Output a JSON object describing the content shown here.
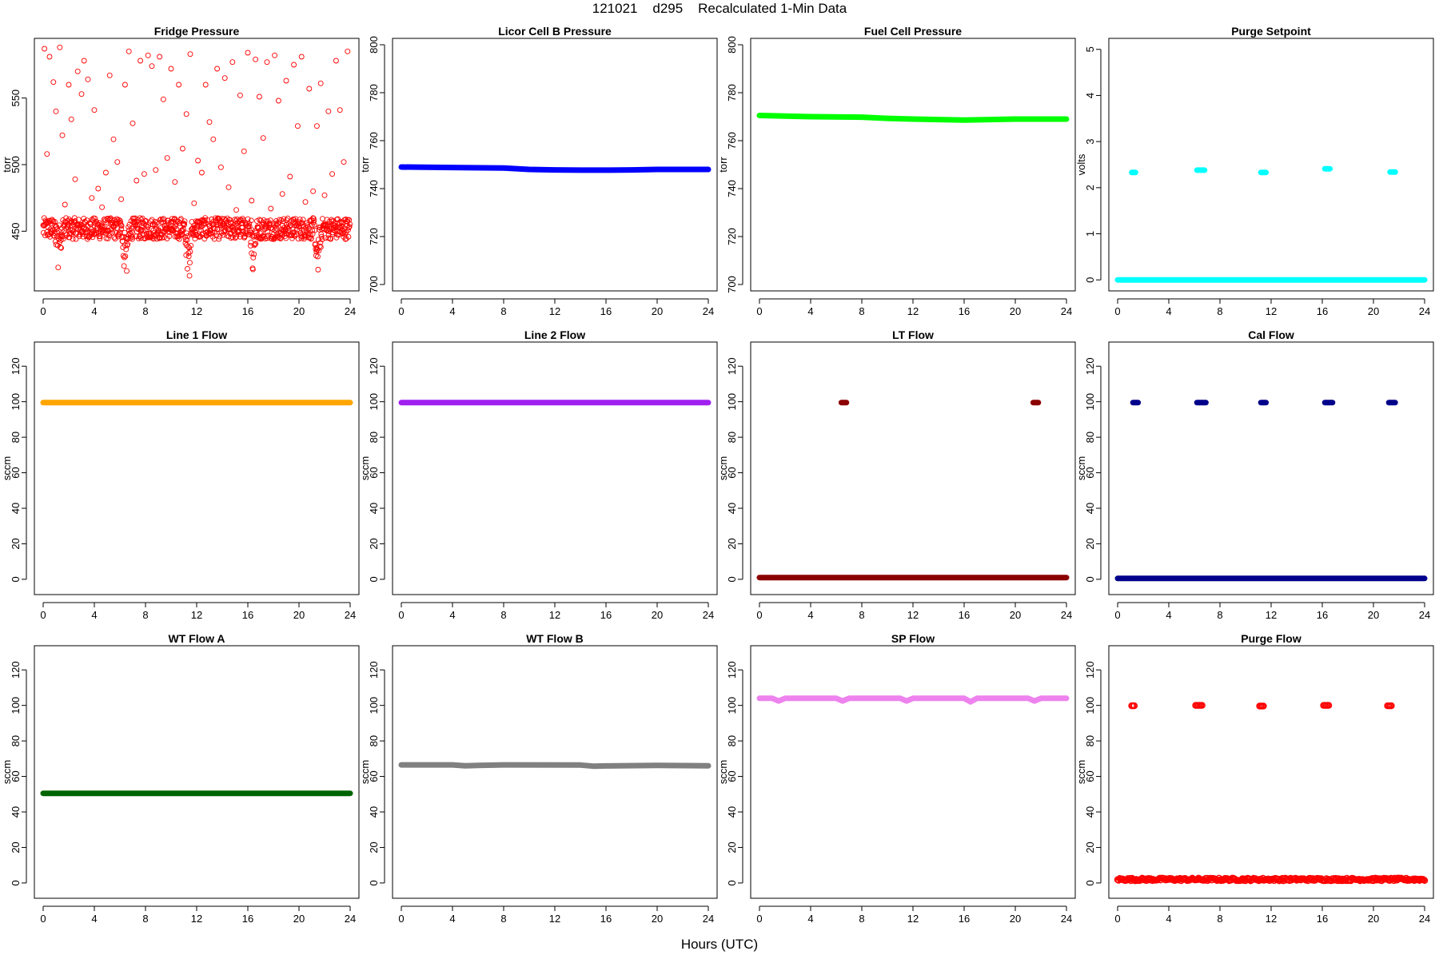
{
  "page": {
    "title": "121021    d295    Recalculated 1-Min Data",
    "xlabel": "Hours (UTC)"
  },
  "chart_data": [
    {
      "type": "scatter",
      "title": "Fridge Pressure",
      "ylabel": "torr",
      "xlim": [
        0,
        24
      ],
      "ylim": [
        410,
        590
      ],
      "xticks": [
        0,
        4,
        8,
        12,
        16,
        20,
        24
      ],
      "yticks": [
        450,
        500,
        550
      ],
      "color": "#ff0000",
      "marker": "open-circle",
      "series": [
        {
          "band": {
            "center": 452,
            "spread": 8
          },
          "dips": [
            [
              1.2,
              420
            ],
            [
              6.4,
              412
            ],
            [
              11.4,
              415
            ],
            [
              16.4,
              420
            ],
            [
              21.5,
              418
            ]
          ],
          "outliers_range": [
            460,
            590
          ],
          "x": [
            0.1,
            0.3,
            0.5,
            0.8,
            1.0,
            1.3,
            1.5,
            1.7,
            2.0,
            2.2,
            2.5,
            2.7,
            3.0,
            3.2,
            3.5,
            3.8,
            4.0,
            4.3,
            4.6,
            4.9,
            5.2,
            5.5,
            5.8,
            6.1,
            6.4,
            6.7,
            7.0,
            7.3,
            7.6,
            7.9,
            8.2,
            8.5,
            8.8,
            9.1,
            9.4,
            9.7,
            10.0,
            10.3,
            10.6,
            10.9,
            11.2,
            11.5,
            11.8,
            12.1,
            12.4,
            12.7,
            13.0,
            13.3,
            13.6,
            13.9,
            14.2,
            14.5,
            14.8,
            15.1,
            15.4,
            15.7,
            16.0,
            16.3,
            16.6,
            16.9,
            17.2,
            17.5,
            17.8,
            18.1,
            18.4,
            18.7,
            19.0,
            19.3,
            19.6,
            19.9,
            20.2,
            20.5,
            20.8,
            21.1,
            21.4,
            21.7,
            22.0,
            22.3,
            22.6,
            22.9,
            23.2,
            23.5,
            23.8
          ],
          "y": [
            587,
            508,
            581,
            562,
            540,
            588,
            522,
            470,
            560,
            534,
            489,
            570,
            553,
            578,
            564,
            475,
            541,
            482,
            468,
            494,
            567,
            519,
            502,
            474,
            560,
            585,
            531,
            488,
            578,
            493,
            582,
            574,
            496,
            581,
            549,
            505,
            572,
            487,
            560,
            512,
            538,
            583,
            471,
            503,
            494,
            560,
            532,
            519,
            572,
            498,
            565,
            483,
            577,
            466,
            552,
            510,
            584,
            473,
            579,
            551,
            520,
            577,
            467,
            582,
            548,
            478,
            563,
            491,
            575,
            529,
            581,
            472,
            557,
            480,
            529,
            561,
            477,
            540,
            493,
            578,
            541,
            502,
            585
          ]
        }
      ]
    },
    {
      "type": "scatter",
      "title": "Licor Cell B Pressure",
      "ylabel": "torr",
      "xlim": [
        0,
        24
      ],
      "ylim": [
        700,
        800
      ],
      "xticks": [
        0,
        4,
        8,
        12,
        16,
        20,
        24
      ],
      "yticks": [
        700,
        720,
        740,
        760,
        780,
        800
      ],
      "color": "#0000ff",
      "marker": "filled",
      "series": [
        {
          "x": [
            0,
            4,
            8,
            10,
            12,
            14,
            16,
            18,
            20,
            24
          ],
          "y": [
            749,
            748.8,
            748.6,
            748,
            747.8,
            747.7,
            747.7,
            747.8,
            748,
            748
          ]
        }
      ]
    },
    {
      "type": "scatter",
      "title": "Fuel Cell Pressure",
      "ylabel": "torr",
      "xlim": [
        0,
        24
      ],
      "ylim": [
        700,
        800
      ],
      "xticks": [
        0,
        4,
        8,
        12,
        16,
        20,
        24
      ],
      "yticks": [
        700,
        720,
        740,
        760,
        780,
        800
      ],
      "color": "#00ff00",
      "marker": "filled",
      "series": [
        {
          "x": [
            0,
            4,
            8,
            10,
            12,
            14,
            16,
            18,
            20,
            24
          ],
          "y": [
            770.5,
            770,
            769.8,
            769.3,
            769,
            768.8,
            768.6,
            768.8,
            769,
            769
          ]
        }
      ]
    },
    {
      "type": "scatter",
      "title": "Purge Setpoint",
      "ylabel": "volts",
      "xlim": [
        0,
        24
      ],
      "ylim": [
        -0.1,
        5.1
      ],
      "xticks": [
        0,
        4,
        8,
        12,
        16,
        20,
        24
      ],
      "yticks": [
        0,
        1,
        2,
        3,
        4,
        5
      ],
      "color": "#00ffff",
      "marker": "filled",
      "series": [
        {
          "x": [
            0,
            24
          ],
          "y": [
            0,
            0
          ],
          "spikes": [
            [
              1.1,
              1.4,
              2.33
            ],
            [
              6.2,
              6.8,
              2.38
            ],
            [
              11.2,
              11.6,
              2.33
            ],
            [
              16.2,
              16.6,
              2.41
            ],
            [
              21.3,
              21.7,
              2.34
            ]
          ]
        }
      ]
    },
    {
      "type": "scatter",
      "title": "Line 1 Flow",
      "ylabel": "sccm",
      "xlim": [
        0,
        24
      ],
      "ylim": [
        -5,
        130
      ],
      "xticks": [
        0,
        4,
        8,
        12,
        16,
        20,
        24
      ],
      "yticks": [
        0,
        20,
        40,
        60,
        80,
        100,
        120
      ],
      "color": "#ffa500",
      "marker": "filled",
      "series": [
        {
          "x": [
            0,
            24
          ],
          "y": [
            99.5,
            99.5
          ]
        }
      ]
    },
    {
      "type": "scatter",
      "title": "Line 2 Flow",
      "ylabel": "sccm",
      "xlim": [
        0,
        24
      ],
      "ylim": [
        -5,
        130
      ],
      "xticks": [
        0,
        4,
        8,
        12,
        16,
        20,
        24
      ],
      "yticks": [
        0,
        20,
        40,
        60,
        80,
        100,
        120
      ],
      "color": "#a020f0",
      "marker": "filled",
      "series": [
        {
          "x": [
            0,
            24
          ],
          "y": [
            99.5,
            99.5
          ]
        }
      ]
    },
    {
      "type": "scatter",
      "title": "LT Flow",
      "ylabel": "sccm",
      "xlim": [
        0,
        24
      ],
      "ylim": [
        -5,
        130
      ],
      "xticks": [
        0,
        4,
        8,
        12,
        16,
        20,
        24
      ],
      "yticks": [
        0,
        20,
        40,
        60,
        80,
        100,
        120
      ],
      "color": "#8b0000",
      "marker": "filled",
      "series": [
        {
          "x": [
            0,
            24
          ],
          "y": [
            1,
            1
          ],
          "spikes": [
            [
              6.4,
              6.8,
              99.5
            ],
            [
              21.4,
              21.8,
              99.5
            ]
          ]
        }
      ]
    },
    {
      "type": "scatter",
      "title": "Cal Flow",
      "ylabel": "sccm",
      "xlim": [
        0,
        24
      ],
      "ylim": [
        -5,
        130
      ],
      "xticks": [
        0,
        4,
        8,
        12,
        16,
        20,
        24
      ],
      "yticks": [
        0,
        20,
        40,
        60,
        80,
        100,
        120
      ],
      "color": "#00008b",
      "marker": "filled",
      "series": [
        {
          "x": [
            0,
            24
          ],
          "y": [
            0.5,
            0.5
          ],
          "spikes": [
            [
              1.2,
              1.6,
              99.5
            ],
            [
              6.2,
              6.9,
              99.5
            ],
            [
              11.2,
              11.6,
              99.5
            ],
            [
              16.2,
              16.8,
              99.5
            ],
            [
              21.2,
              21.7,
              99.5
            ]
          ]
        }
      ]
    },
    {
      "type": "scatter",
      "title": "WT Flow A",
      "ylabel": "sccm",
      "xlim": [
        0,
        24
      ],
      "ylim": [
        -5,
        130
      ],
      "xticks": [
        0,
        4,
        8,
        12,
        16,
        20,
        24
      ],
      "yticks": [
        0,
        20,
        40,
        60,
        80,
        100,
        120
      ],
      "color": "#006400",
      "marker": "filled",
      "series": [
        {
          "x": [
            0,
            24
          ],
          "y": [
            50.5,
            50.5
          ]
        }
      ]
    },
    {
      "type": "scatter",
      "title": "WT Flow B",
      "ylabel": "sccm",
      "xlim": [
        0,
        24
      ],
      "ylim": [
        -5,
        130
      ],
      "xticks": [
        0,
        4,
        8,
        12,
        16,
        20,
        24
      ],
      "yticks": [
        0,
        20,
        40,
        60,
        80,
        100,
        120
      ],
      "color": "#808080",
      "marker": "filled",
      "series": [
        {
          "x": [
            0,
            4,
            5,
            6,
            8,
            14,
            15,
            16,
            20,
            24
          ],
          "y": [
            66.5,
            66.5,
            66,
            66.2,
            66.5,
            66.4,
            65.8,
            65.9,
            66.2,
            66
          ]
        }
      ]
    },
    {
      "type": "scatter",
      "title": "SP Flow",
      "ylabel": "sccm",
      "xlim": [
        0,
        24
      ],
      "ylim": [
        -5,
        130
      ],
      "xticks": [
        0,
        4,
        8,
        12,
        16,
        20,
        24
      ],
      "yticks": [
        0,
        20,
        40,
        60,
        80,
        100,
        120
      ],
      "color": "#ee82ee",
      "marker": "filled",
      "series": [
        {
          "x": [
            0,
            1,
            1.5,
            2,
            6,
            6.5,
            7,
            11,
            11.5,
            12,
            16,
            16.5,
            17,
            21,
            21.5,
            22,
            24
          ],
          "y": [
            104,
            104,
            102.5,
            104,
            104,
            102.5,
            104,
            104,
            102.5,
            104,
            104,
            102,
            104,
            104,
            102.5,
            104,
            104
          ]
        }
      ]
    },
    {
      "type": "scatter",
      "title": "Purge Flow",
      "ylabel": "sccm",
      "xlim": [
        0,
        24
      ],
      "ylim": [
        -5,
        130
      ],
      "xticks": [
        0,
        4,
        8,
        12,
        16,
        20,
        24
      ],
      "yticks": [
        0,
        20,
        40,
        60,
        80,
        100,
        120
      ],
      "color": "#ff0000",
      "marker": "open-circle",
      "series": [
        {
          "x": [
            0,
            24
          ],
          "y": [
            2,
            2
          ],
          "spikes": [
            [
              1.1,
              1.4,
              99.8
            ],
            [
              6.1,
              6.6,
              100
            ],
            [
              11.1,
              11.4,
              99.6
            ],
            [
              16.1,
              16.6,
              100
            ],
            [
              21.1,
              21.5,
              99.8
            ]
          ]
        }
      ]
    }
  ]
}
